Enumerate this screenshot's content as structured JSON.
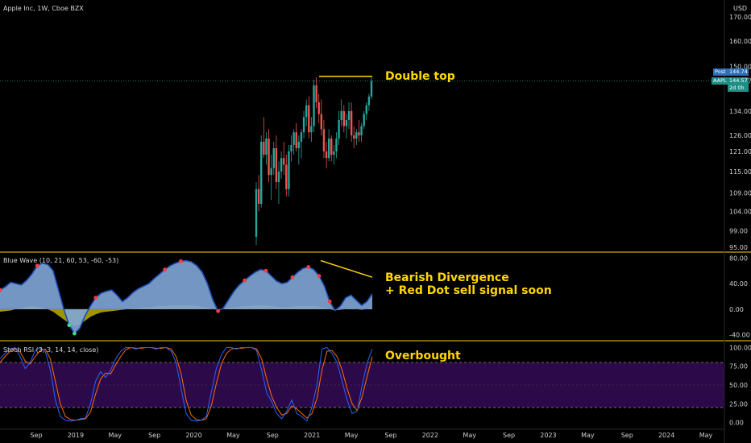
{
  "header": {
    "symbol_title": "Apple Inc, 1W, Cboe BZX",
    "currency": "USD"
  },
  "indicators": {
    "wave_title": "Blue Wave (10, 21, 60, 53, -60, -53)",
    "stoch_title": "Stoch RSI (3, 3, 14, 14, close)"
  },
  "price_tags": {
    "post_label": "Post",
    "post_value": "144.74",
    "ticker_label": "AAPL",
    "last_value": "144.57",
    "countdown": "2d 0h"
  },
  "annotations": {
    "double_top": "Double top",
    "divergence_line1": "Bearish Divergence",
    "divergence_line2": "+ Red Dot sell signal soon",
    "overbought": "Overbought"
  },
  "colors": {
    "background": "#000000",
    "panel_border": "#ffd400",
    "up_candle": "#26a69a",
    "down_candle": "#ef5350",
    "wave_fill": "#7fa6d8",
    "wave_dark": "#1e4bb0",
    "yellow_area": "#b8b000",
    "stoch_k": "#2962ff",
    "stoch_d": "#ff6d00",
    "stoch_band": "#2c0a4a",
    "annotation": "#ffd700",
    "price_line": "#26a69a"
  },
  "chart_data": [
    {
      "type": "candlestick",
      "title": "Apple Inc, 1W, Cboe BZX",
      "ylabel": "USD",
      "scale": "log",
      "y_ticks": [
        "95.00",
        "99.00",
        "104.00",
        "109.00",
        "115.00",
        "121.00",
        "126.00",
        "134.00",
        "144.57",
        "150.00",
        "160.00",
        "170.00"
      ],
      "x_ticks": [
        "Sep",
        "2019",
        "May",
        "Sep",
        "2020",
        "May",
        "Sep",
        "2021",
        "May",
        "Sep",
        "2022",
        "May",
        "Sep",
        "2023",
        "May",
        "Sep",
        "2024",
        "May"
      ],
      "ylim": [
        94,
        176
      ],
      "visible_series": "2020-08 to 2021-07 weekly",
      "ohlc": [
        [
          97.5,
          112,
          95.5,
          110
        ],
        [
          110,
          114,
          104,
          106
        ],
        [
          106,
          126,
          105,
          124
        ],
        [
          124,
          132,
          119,
          120
        ],
        [
          120,
          127,
          117,
          125
        ],
        [
          125,
          128,
          112,
          114
        ],
        [
          114,
          120,
          107,
          116
        ],
        [
          116,
          124,
          114,
          122
        ],
        [
          122,
          126,
          110,
          112
        ],
        [
          112,
          118,
          106,
          115
        ],
        [
          115,
          121,
          113,
          119
        ],
        [
          119,
          124,
          114,
          117
        ],
        [
          117,
          120,
          108,
          110
        ],
        [
          110,
          123,
          108,
          121
        ],
        [
          121,
          126,
          118,
          123
        ],
        [
          123,
          128,
          120,
          127
        ],
        [
          127,
          130,
          121,
          122
        ],
        [
          122,
          126,
          117,
          124
        ],
        [
          124,
          128,
          119,
          127
        ],
        [
          127,
          134,
          125,
          132
        ],
        [
          132,
          138,
          129,
          136
        ],
        [
          136,
          139,
          125,
          127
        ],
        [
          127,
          132,
          124,
          129
        ],
        [
          129,
          145,
          127,
          143
        ],
        [
          143,
          146,
          135,
          137
        ],
        [
          137,
          140,
          130,
          133
        ],
        [
          133,
          138,
          126,
          128
        ],
        [
          128,
          131,
          119,
          121
        ],
        [
          121,
          124,
          116,
          119
        ],
        [
          119,
          128,
          118,
          125
        ],
        [
          125,
          126,
          118,
          120
        ],
        [
          120,
          123,
          117,
          121
        ],
        [
          121,
          127,
          119,
          125
        ],
        [
          125,
          134,
          123,
          131
        ],
        [
          131,
          138,
          129,
          134
        ],
        [
          134,
          136,
          127,
          129
        ],
        [
          129,
          133,
          125,
          131
        ],
        [
          131,
          137,
          128,
          134
        ],
        [
          134,
          137,
          124,
          126
        ],
        [
          126,
          129,
          122,
          125
        ],
        [
          125,
          128,
          123,
          127
        ],
        [
          127,
          131,
          124,
          126
        ],
        [
          126,
          130,
          124,
          129
        ],
        [
          129,
          134,
          128,
          133
        ],
        [
          133,
          137,
          131,
          136
        ],
        [
          136,
          140,
          134,
          139
        ],
        [
          139,
          146,
          138,
          144.57
        ]
      ],
      "double_top_level": 146
    },
    {
      "type": "area",
      "title": "Blue Wave (10, 21, 60, 53, -60, -53)",
      "ylim": [
        -48,
        88
      ],
      "y_ticks": [
        "80.00",
        "40.00",
        "0.00",
        "-40.00"
      ],
      "wave1": [
        30,
        35,
        42,
        40,
        38,
        45,
        55,
        68,
        72,
        70,
        60,
        30,
        0,
        -25,
        -38,
        -30,
        -10,
        5,
        18,
        25,
        28,
        30,
        22,
        12,
        18,
        26,
        32,
        36,
        40,
        48,
        55,
        62,
        68,
        72,
        75,
        76,
        74,
        68,
        58,
        40,
        15,
        -3,
        2,
        15,
        28,
        38,
        45,
        52,
        58,
        62,
        60,
        52,
        44,
        40,
        42,
        50,
        58,
        64,
        66,
        62,
        52,
        36,
        12,
        -2,
        5,
        18,
        22,
        14,
        6,
        12,
        24
      ],
      "yellow": [
        -4,
        -3,
        -2,
        0,
        2,
        4,
        5,
        4,
        2,
        0,
        -4,
        -10,
        -16,
        -22,
        -26,
        -24,
        -18,
        -12,
        -8,
        -5,
        -4,
        -3,
        -2,
        -1,
        0,
        1,
        2,
        3,
        3,
        4,
        5,
        5,
        6,
        6,
        6,
        6,
        6,
        5,
        4,
        2,
        0,
        -1,
        0,
        2,
        3,
        4,
        5,
        5,
        6,
        6,
        6,
        5,
        4,
        3,
        3,
        4,
        5,
        5,
        5,
        5,
        4,
        2,
        0,
        -2,
        -1,
        0,
        1,
        0,
        -1,
        0,
        2
      ],
      "sell_signals_idx": [
        0,
        7,
        18,
        31,
        34,
        41,
        46,
        50,
        55,
        58,
        60,
        62
      ],
      "buy_signals_idx": [
        13,
        14
      ]
    },
    {
      "type": "line",
      "title": "Stoch RSI (3, 3, 14, 14, close)",
      "ylim": [
        -8,
        108
      ],
      "y_ticks": [
        "100.00",
        "75.00",
        "50.00",
        "25.00",
        "0.00"
      ],
      "bands": [
        80,
        20
      ],
      "k": [
        85,
        92,
        98,
        100,
        88,
        72,
        80,
        96,
        100,
        95,
        70,
        30,
        8,
        3,
        2,
        3,
        5,
        6,
        25,
        55,
        68,
        60,
        70,
        85,
        95,
        100,
        100,
        98,
        100,
        100,
        100,
        98,
        100,
        100,
        95,
        80,
        45,
        12,
        3,
        2,
        3,
        8,
        40,
        72,
        90,
        100,
        100,
        98,
        100,
        100,
        100,
        96,
        70,
        40,
        28,
        12,
        5,
        15,
        30,
        12,
        8,
        2,
        20,
        50,
        98,
        100,
        92,
        80,
        55,
        30,
        12,
        15,
        50,
        80,
        98
      ],
      "d": [
        80,
        88,
        95,
        99,
        94,
        82,
        78,
        88,
        96,
        98,
        85,
        55,
        25,
        8,
        4,
        3,
        4,
        5,
        14,
        38,
        58,
        66,
        65,
        77,
        88,
        97,
        100,
        99,
        99,
        100,
        100,
        99,
        99,
        100,
        98,
        88,
        65,
        30,
        10,
        4,
        3,
        5,
        22,
        52,
        78,
        92,
        98,
        99,
        99,
        100,
        100,
        98,
        85,
        58,
        35,
        20,
        10,
        12,
        22,
        18,
        12,
        6,
        12,
        32,
        70,
        95,
        96,
        88,
        70,
        45,
        25,
        16,
        35,
        62,
        88
      ]
    }
  ]
}
